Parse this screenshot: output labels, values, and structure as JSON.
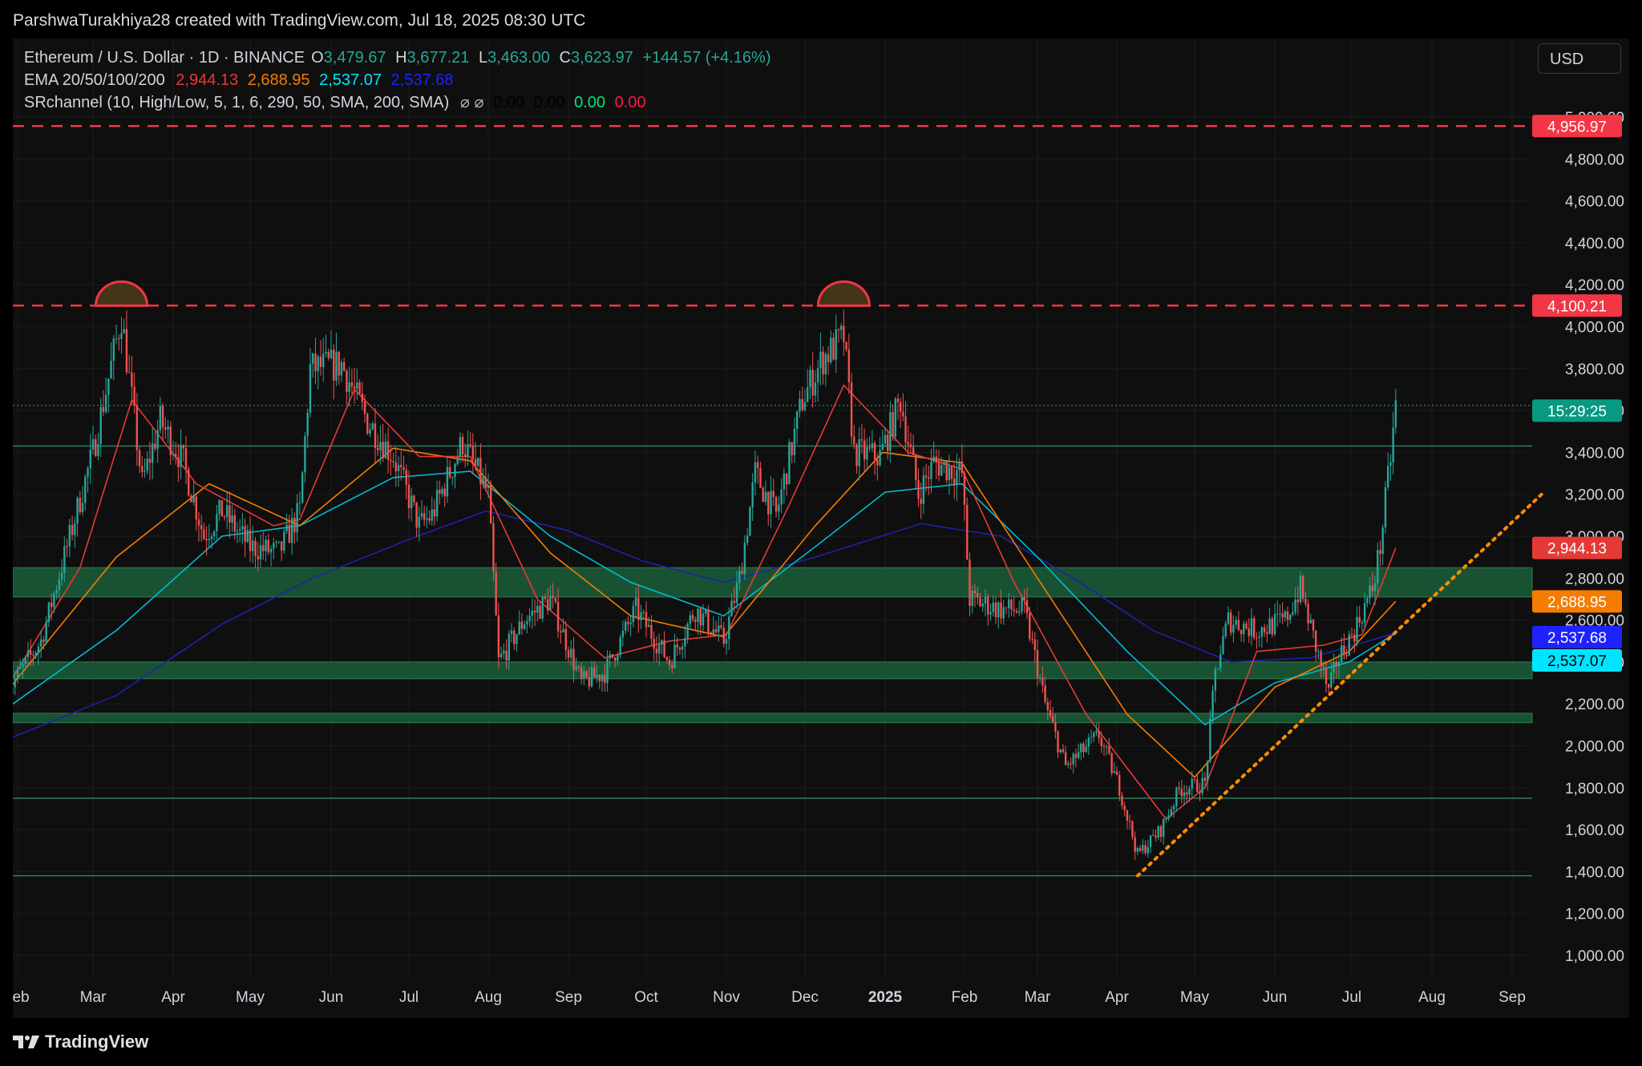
{
  "header": {
    "credit": "ParshwaTurakhiya28 created with TradingView.com, Jul 18, 2025 08:30 UTC"
  },
  "legend": {
    "symbol": "Ethereum / U.S. Dollar · 1D · BINANCE",
    "o_label": "O",
    "o_value": "3,479.67",
    "h_label": "H",
    "h_value": "3,677.21",
    "l_label": "L",
    "l_value": "3,463.00",
    "c_label": "C",
    "c_value": "3,623.97",
    "change": "+144.57 (+4.16%)",
    "ema_label": "EMA 20/50/100/200",
    "ema_values": [
      "2,944.13",
      "2,688.95",
      "2,537.07",
      "2,537.68"
    ],
    "sr_label": "SRchannel (10, High/Low, 5, 1, 6, 290, 50, SMA, 200, SMA)",
    "sr_symbols": "⌀ ⌀",
    "sr_values": [
      "0.00",
      "0.00",
      "0.00",
      "0.00"
    ]
  },
  "currency_button": "USD",
  "logo": "TradingView",
  "colors": {
    "up": "#26a69a",
    "down": "#ef5350",
    "ema20": "#e53935",
    "ema50": "#f57c00",
    "ema100": "#00bcd4",
    "ema200": "#1e22aa",
    "resistance": "#f23645",
    "zone": "#1b5e3a",
    "trendline": "#ff8c00"
  },
  "chart_data": {
    "type": "candlestick",
    "title": "Ethereum / U.S. Dollar · 1D · BINANCE",
    "x_tick_labels": [
      "eb",
      "Mar",
      "Apr",
      "May",
      "Jun",
      "Jul",
      "Aug",
      "Sep",
      "Oct",
      "Nov",
      "Dec",
      "2025",
      "Feb",
      "Mar",
      "Apr",
      "May",
      "Jun",
      "Jul",
      "Aug",
      "Sep"
    ],
    "x_tick_dates": [
      "2024-02-01",
      "2024-03-01",
      "2024-04-01",
      "2024-05-01",
      "2024-06-01",
      "2024-07-01",
      "2024-08-01",
      "2024-09-01",
      "2024-10-01",
      "2024-11-01",
      "2024-12-01",
      "2025-01-01",
      "2025-02-01",
      "2025-03-01",
      "2025-04-01",
      "2025-05-01",
      "2025-06-01",
      "2025-07-01",
      "2025-08-01",
      "2025-09-01"
    ],
    "y_ticks": [
      1000,
      1200,
      1400,
      1600,
      1800,
      2000,
      2200,
      2400,
      2600,
      2800,
      3000,
      3200,
      3400,
      3600,
      3800,
      4000,
      4200,
      4400,
      4600,
      4800,
      5000
    ],
    "y_tick_labels": [
      "1,000.00",
      "1,200.00",
      "1,400.00",
      "1,600.00",
      "1,800.00",
      "2,000.00",
      "2,200.00",
      "2,400.00",
      "2,600.00",
      "2,800.00",
      "3,000.00",
      "3,200.00",
      "3,400.00",
      "3,600.00",
      "3,800.00",
      "4,000.00",
      "4,200.00",
      "4,400.00",
      "4,600.00",
      "4,800.00",
      "5,000.00"
    ],
    "ylim": [
      900,
      5050
    ],
    "price_path": [
      {
        "date": "2024-01-28",
        "price": 2260
      },
      {
        "date": "2024-02-10",
        "price": 2500
      },
      {
        "date": "2024-02-20",
        "price": 2950
      },
      {
        "date": "2024-03-01",
        "price": 3400
      },
      {
        "date": "2024-03-12",
        "price": 4050
      },
      {
        "date": "2024-03-20",
        "price": 3250
      },
      {
        "date": "2024-03-27",
        "price": 3550
      },
      {
        "date": "2024-04-05",
        "price": 3350
      },
      {
        "date": "2024-04-13",
        "price": 3000
      },
      {
        "date": "2024-04-20",
        "price": 3120
      },
      {
        "date": "2024-05-01",
        "price": 2950
      },
      {
        "date": "2024-05-12",
        "price": 2920
      },
      {
        "date": "2024-05-20",
        "price": 3120
      },
      {
        "date": "2024-05-24",
        "price": 3800
      },
      {
        "date": "2024-06-05",
        "price": 3820
      },
      {
        "date": "2024-06-15",
        "price": 3550
      },
      {
        "date": "2024-06-25",
        "price": 3380
      },
      {
        "date": "2024-07-05",
        "price": 3050
      },
      {
        "date": "2024-07-10",
        "price": 3100
      },
      {
        "date": "2024-07-22",
        "price": 3450
      },
      {
        "date": "2024-08-01",
        "price": 3200
      },
      {
        "date": "2024-08-05",
        "price": 2400
      },
      {
        "date": "2024-08-15",
        "price": 2600
      },
      {
        "date": "2024-08-25",
        "price": 2700
      },
      {
        "date": "2024-09-06",
        "price": 2300
      },
      {
        "date": "2024-09-15",
        "price": 2350
      },
      {
        "date": "2024-09-27",
        "price": 2650
      },
      {
        "date": "2024-10-10",
        "price": 2400
      },
      {
        "date": "2024-10-20",
        "price": 2650
      },
      {
        "date": "2024-10-31",
        "price": 2500
      },
      {
        "date": "2024-11-06",
        "price": 2800
      },
      {
        "date": "2024-11-12",
        "price": 3300
      },
      {
        "date": "2024-11-20",
        "price": 3100
      },
      {
        "date": "2024-11-30",
        "price": 3650
      },
      {
        "date": "2024-12-08",
        "price": 3850
      },
      {
        "date": "2024-12-16",
        "price": 3950
      },
      {
        "date": "2024-12-20",
        "price": 3400
      },
      {
        "date": "2024-12-30",
        "price": 3380
      },
      {
        "date": "2025-01-07",
        "price": 3650
      },
      {
        "date": "2025-01-14",
        "price": 3200
      },
      {
        "date": "2025-01-20",
        "price": 3350
      },
      {
        "date": "2025-01-31",
        "price": 3300
      },
      {
        "date": "2025-02-03",
        "price": 2700
      },
      {
        "date": "2025-02-15",
        "price": 2650
      },
      {
        "date": "2025-02-24",
        "price": 2650
      },
      {
        "date": "2025-03-04",
        "price": 2200
      },
      {
        "date": "2025-03-12",
        "price": 1900
      },
      {
        "date": "2025-03-25",
        "price": 2050
      },
      {
        "date": "2025-04-02",
        "price": 1800
      },
      {
        "date": "2025-04-09",
        "price": 1480
      },
      {
        "date": "2025-04-18",
        "price": 1600
      },
      {
        "date": "2025-04-25",
        "price": 1790
      },
      {
        "date": "2025-05-05",
        "price": 1820
      },
      {
        "date": "2025-05-09",
        "price": 2350
      },
      {
        "date": "2025-05-14",
        "price": 2600
      },
      {
        "date": "2025-05-25",
        "price": 2550
      },
      {
        "date": "2025-06-05",
        "price": 2600
      },
      {
        "date": "2025-06-11",
        "price": 2750
      },
      {
        "date": "2025-06-16",
        "price": 2520
      },
      {
        "date": "2025-06-22",
        "price": 2250
      },
      {
        "date": "2025-06-25",
        "price": 2400
      },
      {
        "date": "2025-07-02",
        "price": 2550
      },
      {
        "date": "2025-07-09",
        "price": 2750
      },
      {
        "date": "2025-07-12",
        "price": 2950
      },
      {
        "date": "2025-07-16",
        "price": 3380
      },
      {
        "date": "2025-07-18",
        "price": 3624
      }
    ],
    "ema20": [
      {
        "date": "2024-01-28",
        "price": 2280
      },
      {
        "date": "2024-02-25",
        "price": 2850
      },
      {
        "date": "2024-03-16",
        "price": 3650
      },
      {
        "date": "2024-04-10",
        "price": 3250
      },
      {
        "date": "2024-05-10",
        "price": 3050
      },
      {
        "date": "2024-05-20",
        "price": 3080
      },
      {
        "date": "2024-06-10",
        "price": 3700
      },
      {
        "date": "2024-07-05",
        "price": 3380
      },
      {
        "date": "2024-07-25",
        "price": 3380
      },
      {
        "date": "2024-08-20",
        "price": 2700
      },
      {
        "date": "2024-09-15",
        "price": 2420
      },
      {
        "date": "2024-10-10",
        "price": 2500
      },
      {
        "date": "2024-11-01",
        "price": 2530
      },
      {
        "date": "2024-11-25",
        "price": 3150
      },
      {
        "date": "2024-12-16",
        "price": 3720
      },
      {
        "date": "2025-01-10",
        "price": 3400
      },
      {
        "date": "2025-01-31",
        "price": 3320
      },
      {
        "date": "2025-02-20",
        "price": 2780
      },
      {
        "date": "2025-03-20",
        "price": 2150
      },
      {
        "date": "2025-04-20",
        "price": 1650
      },
      {
        "date": "2025-05-05",
        "price": 1800
      },
      {
        "date": "2025-05-25",
        "price": 2450
      },
      {
        "date": "2025-06-20",
        "price": 2480
      },
      {
        "date": "2025-07-05",
        "price": 2530
      },
      {
        "date": "2025-07-18",
        "price": 2944
      }
    ],
    "ema50": [
      {
        "date": "2024-01-28",
        "price": 2260
      },
      {
        "date": "2024-03-10",
        "price": 2900
      },
      {
        "date": "2024-04-15",
        "price": 3250
      },
      {
        "date": "2024-05-20",
        "price": 3050
      },
      {
        "date": "2024-06-25",
        "price": 3420
      },
      {
        "date": "2024-07-25",
        "price": 3360
      },
      {
        "date": "2024-08-25",
        "price": 2920
      },
      {
        "date": "2024-09-25",
        "price": 2620
      },
      {
        "date": "2024-10-31",
        "price": 2520
      },
      {
        "date": "2024-12-05",
        "price": 3050
      },
      {
        "date": "2024-12-31",
        "price": 3400
      },
      {
        "date": "2025-01-31",
        "price": 3350
      },
      {
        "date": "2025-03-01",
        "price": 2800
      },
      {
        "date": "2025-04-05",
        "price": 2150
      },
      {
        "date": "2025-05-01",
        "price": 1850
      },
      {
        "date": "2025-06-01",
        "price": 2280
      },
      {
        "date": "2025-06-30",
        "price": 2450
      },
      {
        "date": "2025-07-18",
        "price": 2689
      }
    ],
    "ema100": [
      {
        "date": "2024-01-28",
        "price": 2180
      },
      {
        "date": "2024-03-10",
        "price": 2550
      },
      {
        "date": "2024-04-20",
        "price": 3000
      },
      {
        "date": "2024-05-20",
        "price": 3050
      },
      {
        "date": "2024-06-25",
        "price": 3280
      },
      {
        "date": "2024-07-25",
        "price": 3310
      },
      {
        "date": "2024-08-25",
        "price": 3000
      },
      {
        "date": "2024-09-25",
        "price": 2780
      },
      {
        "date": "2024-10-31",
        "price": 2620
      },
      {
        "date": "2024-12-05",
        "price": 2950
      },
      {
        "date": "2025-01-01",
        "price": 3210
      },
      {
        "date": "2025-01-31",
        "price": 3250
      },
      {
        "date": "2025-03-01",
        "price": 2900
      },
      {
        "date": "2025-04-05",
        "price": 2450
      },
      {
        "date": "2025-05-05",
        "price": 2100
      },
      {
        "date": "2025-06-01",
        "price": 2300
      },
      {
        "date": "2025-06-30",
        "price": 2400
      },
      {
        "date": "2025-07-18",
        "price": 2537
      }
    ],
    "ema200": [
      {
        "date": "2024-01-28",
        "price": 2030
      },
      {
        "date": "2024-03-10",
        "price": 2240
      },
      {
        "date": "2024-04-20",
        "price": 2580
      },
      {
        "date": "2024-05-25",
        "price": 2800
      },
      {
        "date": "2024-06-30",
        "price": 2980
      },
      {
        "date": "2024-07-31",
        "price": 3120
      },
      {
        "date": "2024-08-31",
        "price": 3030
      },
      {
        "date": "2024-09-30",
        "price": 2880
      },
      {
        "date": "2024-10-31",
        "price": 2780
      },
      {
        "date": "2024-12-05",
        "price": 2900
      },
      {
        "date": "2025-01-15",
        "price": 3060
      },
      {
        "date": "2025-02-15",
        "price": 3000
      },
      {
        "date": "2025-03-15",
        "price": 2800
      },
      {
        "date": "2025-04-15",
        "price": 2550
      },
      {
        "date": "2025-05-15",
        "price": 2400
      },
      {
        "date": "2025-06-15",
        "price": 2420
      },
      {
        "date": "2025-07-18",
        "price": 2538
      }
    ],
    "resistance_lines": [
      {
        "price": 4956.97,
        "label": "4,956.97"
      },
      {
        "price": 4100.21,
        "label": "4,100.21"
      }
    ],
    "double_top_markers": [
      {
        "date": "2024-03-12",
        "price": 4100
      },
      {
        "date": "2024-12-16",
        "price": 4100
      }
    ],
    "support_zones": [
      {
        "low": 2710,
        "high": 2850
      },
      {
        "low": 2320,
        "high": 2400
      },
      {
        "low": 2110,
        "high": 2155
      }
    ],
    "horizontal_lines": [
      3430,
      1750,
      1380
    ],
    "trendline": {
      "start": {
        "date": "2025-04-09",
        "price": 1380
      },
      "end": {
        "date": "2025-09-13",
        "price": 3210
      }
    },
    "countdown_label": "15:29:25",
    "current_price": 3623.97,
    "ema_labels": [
      {
        "price": 2944.13,
        "label": "2,944.13",
        "color": "#e53935",
        "text_color": "#ffffff"
      },
      {
        "price": 2688.95,
        "label": "2,688.95",
        "color": "#f57c00",
        "text_color": "#ffffff"
      },
      {
        "price": 2537.68,
        "label": "2,537.68",
        "color": "#1e22ff",
        "text_color": "#ffffff"
      },
      {
        "price": 2537.07,
        "label": "2,537.07",
        "color": "#00e5ff",
        "text_color": "#000000"
      }
    ]
  }
}
